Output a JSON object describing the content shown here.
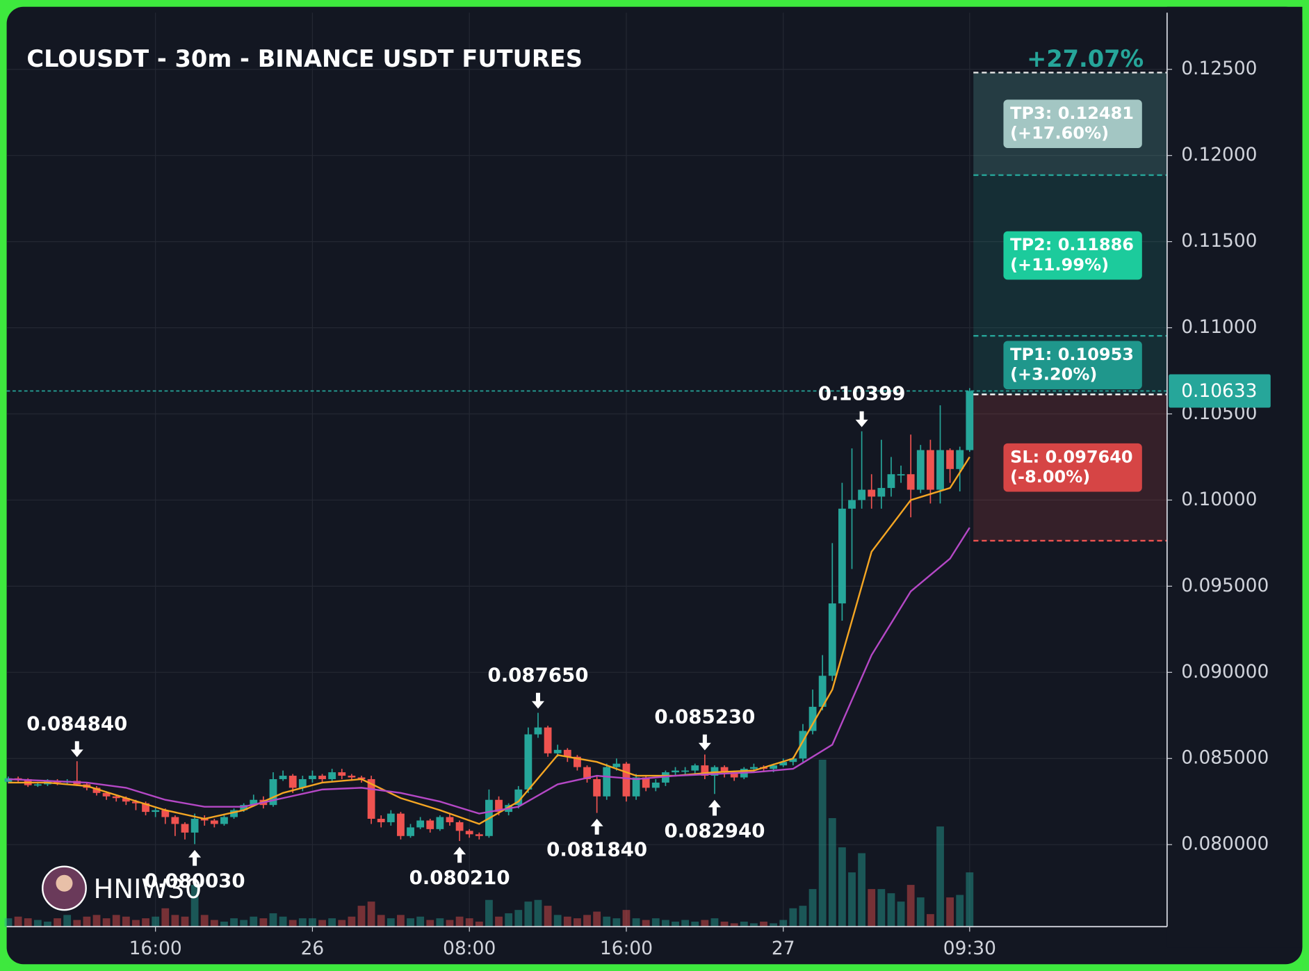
{
  "chart_data": {
    "type": "candlestick",
    "title": "CLOUSDT - 30m - BINANCE USDT FUTURES",
    "watermark": "HNIW30",
    "categories": [
      null,
      null,
      null,
      null,
      null,
      null,
      null,
      null,
      null,
      null,
      null,
      null,
      null,
      null,
      null,
      "16:00",
      null,
      null,
      null,
      null,
      null,
      null,
      null,
      null,
      null,
      null,
      null,
      null,
      null,
      null,
      null,
      "26",
      null,
      null,
      null,
      null,
      null,
      null,
      null,
      null,
      null,
      null,
      null,
      null,
      null,
      null,
      null,
      "08:00",
      null,
      null,
      null,
      null,
      null,
      null,
      null,
      null,
      null,
      null,
      null,
      null,
      null,
      null,
      null,
      "16:00",
      null,
      null,
      null,
      null,
      null,
      null,
      null,
      null,
      null,
      null,
      null,
      null,
      null,
      null,
      null,
      "27",
      null,
      null,
      null,
      null,
      null,
      null,
      null,
      null,
      null,
      null,
      null,
      null,
      null,
      null,
      null,
      null,
      null,
      null,
      "09:30"
    ],
    "open": [
      0.08365,
      0.08385,
      0.0838,
      0.08345,
      0.0835,
      0.0837,
      0.0836,
      0.0837,
      0.0835,
      0.0833,
      0.083,
      0.0828,
      0.0827,
      0.0825,
      0.0824,
      0.0819,
      0.082,
      0.0816,
      0.0812,
      0.0807,
      0.0815,
      0.0814,
      0.0812,
      0.0816,
      0.082,
      0.0823,
      0.0826,
      0.0823,
      0.0838,
      0.084,
      0.0833,
      0.0838,
      0.084,
      0.0838,
      0.0842,
      0.084,
      0.0839,
      0.0838,
      0.0815,
      0.0813,
      0.0818,
      0.0805,
      0.081,
      0.0814,
      0.0809,
      0.0816,
      0.0813,
      0.0808,
      0.0806,
      0.0805,
      0.0826,
      0.0819,
      0.0823,
      0.0832,
      0.0864,
      0.0868,
      0.0853,
      0.0855,
      0.0851,
      0.0845,
      0.0838,
      0.0828,
      0.0845,
      0.0847,
      0.0828,
      0.0839,
      0.0833,
      0.0836,
      0.0842,
      0.0843,
      0.0843,
      0.0846,
      0.084,
      0.0845,
      0.0842,
      0.0839,
      0.0844,
      0.0845,
      0.0844,
      0.0846,
      0.0848,
      0.085,
      0.0866,
      0.088,
      0.0898,
      0.094,
      0.0995,
      0.1,
      0.1006,
      0.1002,
      0.1007,
      0.1015,
      0.1015,
      0.1006,
      0.1029,
      0.1006,
      0.1029,
      0.1018,
      0.1029
    ],
    "high": [
      0.08395,
      0.08395,
      0.08385,
      0.08365,
      0.0838,
      0.0838,
      0.0838,
      0.08484,
      0.0836,
      0.0834,
      0.0831,
      0.0829,
      0.0828,
      0.0826,
      0.0825,
      0.0822,
      0.0821,
      0.0817,
      0.0813,
      0.0818,
      0.0817,
      0.0815,
      0.0817,
      0.0821,
      0.0824,
      0.0829,
      0.0828,
      0.0842,
      0.0843,
      0.0841,
      0.084,
      0.0843,
      0.0841,
      0.0844,
      0.0844,
      0.0841,
      0.084,
      0.084,
      0.0817,
      0.082,
      0.0819,
      0.0812,
      0.0816,
      0.0815,
      0.0817,
      0.0818,
      0.0814,
      0.0809,
      0.0807,
      0.0832,
      0.0828,
      0.0824,
      0.0834,
      0.0868,
      0.08765,
      0.0869,
      0.0858,
      0.0856,
      0.0852,
      0.0846,
      0.084,
      0.0847,
      0.085,
      0.0848,
      0.0841,
      0.084,
      0.0838,
      0.0843,
      0.0845,
      0.0845,
      0.0847,
      0.08523,
      0.0846,
      0.0846,
      0.0843,
      0.0845,
      0.0847,
      0.0846,
      0.0847,
      0.085,
      0.0851,
      0.087,
      0.089,
      0.091,
      0.0975,
      0.101,
      0.103,
      0.10399,
      0.1015,
      0.1035,
      0.1025,
      0.102,
      0.1038,
      0.1032,
      0.1035,
      0.1055,
      0.103,
      0.1031,
      0.1065
    ],
    "low": [
      0.08355,
      0.08365,
      0.08335,
      0.08335,
      0.0834,
      0.08345,
      0.0835,
      0.0834,
      0.08315,
      0.08285,
      0.0826,
      0.0825,
      0.0823,
      0.082,
      0.0817,
      0.0816,
      0.0812,
      0.0805,
      0.0803,
      0.08003,
      0.0811,
      0.081,
      0.0811,
      0.0815,
      0.0819,
      0.0822,
      0.0821,
      0.0822,
      0.0837,
      0.083,
      0.0831,
      0.0836,
      0.0836,
      0.0837,
      0.0838,
      0.0837,
      0.0836,
      0.0812,
      0.081,
      0.0811,
      0.0803,
      0.0804,
      0.0809,
      0.0807,
      0.0808,
      0.0811,
      0.08021,
      0.0804,
      0.0803,
      0.0804,
      0.0817,
      0.0817,
      0.0821,
      0.083,
      0.0862,
      0.0851,
      0.0851,
      0.0848,
      0.0843,
      0.0836,
      0.08184,
      0.0826,
      0.0843,
      0.0825,
      0.0826,
      0.0831,
      0.0831,
      0.0834,
      0.084,
      0.084,
      0.0841,
      0.0838,
      0.08294,
      0.0839,
      0.0837,
      0.0838,
      0.0842,
      0.0842,
      0.0842,
      0.0845,
      0.0846,
      0.0848,
      0.0864,
      0.0878,
      0.0895,
      0.093,
      0.096,
      0.0995,
      0.0995,
      0.0995,
      0.1002,
      0.101,
      0.099,
      0.1004,
      0.0998,
      0.0998,
      0.101,
      0.1005,
      0.1028
    ],
    "close": [
      0.08385,
      0.0838,
      0.08345,
      0.0835,
      0.0837,
      0.0836,
      0.0837,
      0.0835,
      0.0833,
      0.083,
      0.0828,
      0.0827,
      0.0825,
      0.0824,
      0.0819,
      0.082,
      0.0816,
      0.0812,
      0.0807,
      0.0815,
      0.0814,
      0.0812,
      0.0816,
      0.082,
      0.0823,
      0.0826,
      0.0823,
      0.0838,
      0.084,
      0.0833,
      0.0838,
      0.084,
      0.0838,
      0.0842,
      0.084,
      0.0839,
      0.0838,
      0.0815,
      0.0813,
      0.0818,
      0.0805,
      0.081,
      0.0814,
      0.0809,
      0.0816,
      0.0813,
      0.0808,
      0.0806,
      0.0805,
      0.0826,
      0.0819,
      0.0823,
      0.0832,
      0.0864,
      0.0868,
      0.0853,
      0.0855,
      0.0851,
      0.0845,
      0.0838,
      0.0828,
      0.0845,
      0.0847,
      0.0828,
      0.0839,
      0.0833,
      0.0836,
      0.0842,
      0.0843,
      0.0843,
      0.0846,
      0.084,
      0.0845,
      0.0842,
      0.0839,
      0.0844,
      0.0845,
      0.0844,
      0.0846,
      0.0848,
      0.085,
      0.0866,
      0.088,
      0.0898,
      0.094,
      0.0995,
      0.1,
      0.1006,
      0.1002,
      0.1007,
      0.1015,
      0.1015,
      0.1006,
      0.1029,
      0.1006,
      0.1029,
      0.1018,
      0.1029,
      0.10633
    ],
    "volume": [
      10,
      12,
      10,
      8,
      6,
      10,
      14,
      8,
      12,
      14,
      10,
      14,
      12,
      8,
      10,
      12,
      22,
      14,
      12,
      50,
      14,
      8,
      6,
      10,
      8,
      12,
      10,
      16,
      12,
      8,
      10,
      10,
      8,
      10,
      8,
      12,
      25,
      30,
      14,
      10,
      14,
      10,
      12,
      8,
      10,
      8,
      12,
      10,
      6,
      32,
      12,
      16,
      20,
      30,
      32,
      25,
      14,
      12,
      10,
      14,
      18,
      12,
      10,
      20,
      10,
      8,
      10,
      8,
      6,
      8,
      6,
      8,
      10,
      6,
      4,
      6,
      4,
      6,
      4,
      8,
      22,
      25,
      45,
      200,
      130,
      95,
      65,
      88,
      45,
      45,
      40,
      30,
      50,
      35,
      15,
      120,
      35,
      38,
      65
    ],
    "up_color": "#26a69a",
    "down_color": "#ef5350",
    "overlays": [
      {
        "color": "#f5a623",
        "x": [
          0,
          4,
          8,
          12,
          16,
          20,
          24,
          28,
          32,
          36,
          40,
          44,
          48,
          52,
          56,
          60,
          64,
          68,
          72,
          76,
          80,
          84,
          88,
          92,
          96,
          98
        ],
        "values": [
          0.0836,
          0.0836,
          0.0834,
          0.0827,
          0.082,
          0.0815,
          0.082,
          0.083,
          0.0836,
          0.0838,
          0.0827,
          0.082,
          0.0812,
          0.0825,
          0.0852,
          0.0848,
          0.084,
          0.084,
          0.0842,
          0.0843,
          0.085,
          0.089,
          0.097,
          0.1,
          0.1007,
          0.1025
        ]
      },
      {
        "color": "#b548c6",
        "x": [
          0,
          4,
          8,
          12,
          16,
          20,
          24,
          28,
          32,
          36,
          40,
          44,
          48,
          52,
          56,
          60,
          64,
          68,
          72,
          76,
          80,
          84,
          88,
          92,
          96,
          98
        ],
        "values": [
          0.0838,
          0.0837,
          0.0836,
          0.0833,
          0.0826,
          0.0822,
          0.0822,
          0.0827,
          0.0832,
          0.0833,
          0.083,
          0.0825,
          0.0818,
          0.0822,
          0.0835,
          0.084,
          0.0838,
          0.084,
          0.0841,
          0.0842,
          0.0844,
          0.0858,
          0.091,
          0.0947,
          0.0966,
          0.0984
        ]
      }
    ],
    "annotations": [
      {
        "label": "0.084840",
        "value": 0.08484,
        "index": 7,
        "kind": "high"
      },
      {
        "label": "0.080030",
        "value": 0.08003,
        "index": 19,
        "kind": "low"
      },
      {
        "label": "0.080210",
        "value": 0.08021,
        "index": 46,
        "kind": "low"
      },
      {
        "label": "0.087650",
        "value": 0.08765,
        "index": 54,
        "kind": "high"
      },
      {
        "label": "0.081840",
        "value": 0.08184,
        "index": 60,
        "kind": "low"
      },
      {
        "label": "0.085230",
        "value": 0.08523,
        "index": 71,
        "kind": "high"
      },
      {
        "label": "0.082940",
        "value": 0.08294,
        "index": 72,
        "kind": "low"
      },
      {
        "label": "0.10399",
        "value": 0.10399,
        "index": 87,
        "kind": "high"
      }
    ],
    "position": {
      "total_label": "+27.07%",
      "entry": 0.10613,
      "targets": [
        {
          "label": "TP3: 0.12481",
          "change": "(+17.60%)",
          "value": 0.12481,
          "color": "#a3c6c3",
          "line": "#e6e6e6"
        },
        {
          "label": "TP2: 0.11886",
          "change": "(+11.99%)",
          "value": 0.11886,
          "color": "#1ccb9c",
          "line": "#26a69a"
        },
        {
          "label": "TP1: 0.10953",
          "change": "(+3.20%)",
          "value": 0.10953,
          "color": "#1f978c",
          "line": "#26a69a"
        }
      ],
      "stop": {
        "label": "SL: 0.097640",
        "change": "(-8.00%)",
        "value": 0.09764,
        "color": "#d64545",
        "line": "#ef5350"
      }
    },
    "ylim": [
      0.07524,
      0.12829
    ],
    "yticks": [
      {
        "value": 0.125,
        "label": "0.12500"
      },
      {
        "value": 0.12,
        "label": "0.12000"
      },
      {
        "value": 0.115,
        "label": "0.11500"
      },
      {
        "value": 0.11,
        "label": "0.11000"
      },
      {
        "value": 0.105,
        "label": "0.10500"
      },
      {
        "value": 0.1,
        "label": "0.10000"
      },
      {
        "value": 0.095,
        "label": "0.095000"
      },
      {
        "value": 0.09,
        "label": "0.090000"
      },
      {
        "value": 0.085,
        "label": "0.085000"
      },
      {
        "value": 0.08,
        "label": "0.080000"
      }
    ],
    "grid": true
  }
}
